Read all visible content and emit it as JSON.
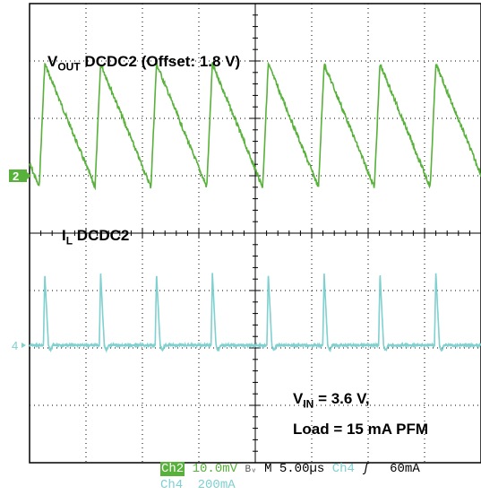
{
  "chart_data": {
    "type": "line",
    "annotations": {
      "vout_main": "V",
      "vout_sub": "OUT",
      "vout_rest": " DCDC2 (Offset: 1.8 V)",
      "il_main": "I",
      "il_sub": "L",
      "il_rest": " DCDC2",
      "vin_main": "V",
      "vin_sub": "IN",
      "vin_rest": " = 3.6 V,",
      "load": "Load = 15 mA PFM"
    },
    "channel_markers": {
      "ch2": "2",
      "ch4": "4"
    },
    "status": {
      "ch2_label": "Ch2",
      "ch2_scale": "10.0mV",
      "bw_symbol": "Bᵥ",
      "timebase": "M 5.00µs",
      "trig_ch": "Ch4",
      "trig_symbol": "ʃ",
      "trig_level": "60mA",
      "ch4_label": "Ch4",
      "ch4_scale": "200mA"
    },
    "colors": {
      "ch2": "#57b13a",
      "ch4": "#7fd0cf",
      "grid": "#000000"
    },
    "grid": {
      "h_divisions": 8,
      "v_divisions": 8,
      "time_per_div_us": 5
    },
    "series": [
      {
        "channel": "Ch2",
        "scale_per_div": "10.0mV",
        "offset": "1.8 V",
        "period_us": 4.95,
        "first_peak_us": 6.3,
        "peak_div": 1.95,
        "trough_div": -0.2,
        "rise_us": 0.5
      },
      {
        "channel": "Ch4",
        "scale_per_div": "200mA",
        "period_us": 4.95,
        "first_peak_us": 6.3,
        "peak_div": 1.25,
        "baseline_div": 0
      }
    ]
  }
}
